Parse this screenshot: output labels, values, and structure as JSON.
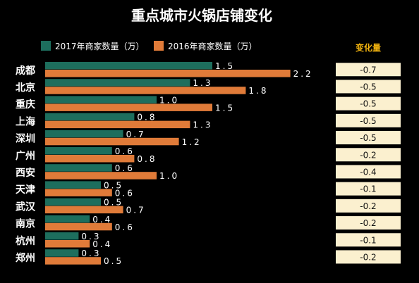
{
  "chart_data": {
    "type": "bar",
    "title": "重点城市火锅店铺变化",
    "categories": [
      "成都",
      "北京",
      "重庆",
      "上海",
      "深圳",
      "广州",
      "西安",
      "天津",
      "武汉",
      "南京",
      "杭州",
      "郑州"
    ],
    "series": [
      {
        "name": "2017年商家数量（万）",
        "color": "#1d6e5d",
        "values": [
          1.5,
          1.3,
          1.0,
          0.8,
          0.7,
          0.6,
          0.6,
          0.5,
          0.5,
          0.4,
          0.3,
          0.3
        ],
        "labels": [
          "1.5",
          "1.3",
          "1.0",
          "0.8",
          "0.7",
          "0.6",
          "0.6",
          "0.5",
          "0.5",
          "0.4",
          "0.3",
          "0.3"
        ]
      },
      {
        "name": "2016年商家数量（万）",
        "color": "#e07b39",
        "values": [
          2.2,
          1.8,
          1.5,
          1.3,
          1.2,
          0.8,
          1.0,
          0.6,
          0.7,
          0.6,
          0.4,
          0.5
        ],
        "labels": [
          "2.2",
          "1.8",
          "1.5",
          "1.3",
          "1.2",
          "0.8",
          "1.0",
          "0.6",
          "0.7",
          "0.6",
          "0.4",
          "0.5"
        ]
      }
    ],
    "change_header": "变化量",
    "change_values": [
      "-0.7",
      "-0.5",
      "-0.5",
      "-0.5",
      "-0.5",
      "-0.2",
      "-0.4",
      "-0.1",
      "-0.2",
      "-0.2",
      "-0.1",
      "-0.2"
    ],
    "xlim": [
      0,
      2.2
    ],
    "legend_position": "top",
    "grid": false,
    "colors": {
      "background": "#000000",
      "text": "#ffffff",
      "header_accent": "#f3b40f",
      "change_cell": "#fbf0cf",
      "change_text": "#111111"
    }
  }
}
